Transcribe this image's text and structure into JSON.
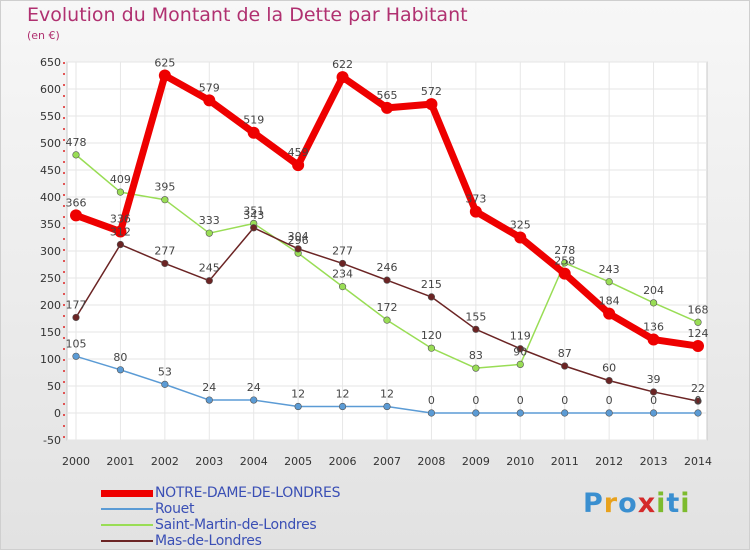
{
  "chart_data": {
    "type": "line",
    "title": "Evolution du Montant de la Dette par Habitant",
    "subtitle": "(en €)",
    "x": [
      2000,
      2001,
      2002,
      2003,
      2004,
      2005,
      2006,
      2007,
      2008,
      2009,
      2010,
      2011,
      2012,
      2013,
      2014
    ],
    "x_tick_labels": [
      "2000",
      "2001",
      "2002",
      "2003",
      "2004",
      "2005",
      "2006",
      "2007",
      "2008",
      "2009",
      "2010",
      "2011",
      "2012",
      "2013",
      "2014"
    ],
    "ylim": [
      -50,
      650
    ],
    "y_ticks": [
      -50,
      0,
      50,
      100,
      150,
      200,
      250,
      300,
      350,
      400,
      450,
      500,
      550,
      600,
      650
    ],
    "y_tick_labels": [
      "-50",
      "0",
      "50",
      "100",
      "150",
      "200",
      "250",
      "300",
      "350",
      "400",
      "450",
      "500",
      "550",
      "600",
      "650"
    ],
    "grid": true,
    "legend_position": "bottom-left",
    "series": [
      {
        "name": "Rouet",
        "color": "#5b9bd5",
        "values": [
          105,
          80,
          53,
          24,
          24,
          12,
          12,
          12,
          0,
          0,
          0,
          0,
          0,
          0,
          0
        ],
        "labels": [
          "105",
          "80",
          "53",
          "24",
          "24",
          "12",
          "12",
          "12",
          "0",
          "0",
          "0",
          "0",
          "0",
          "0",
          "0"
        ]
      },
      {
        "name": "Saint-Martin-de-Londres",
        "color": "#99dd55",
        "values": [
          478,
          409,
          395,
          333,
          351,
          296,
          234,
          172,
          120,
          83,
          90,
          278,
          243,
          204,
          168
        ],
        "labels": [
          "478",
          "409",
          "395",
          "333",
          "351",
          "296",
          "234",
          "172",
          "120",
          "83",
          "90",
          "278",
          "243",
          "204",
          "168"
        ]
      },
      {
        "name": "Mas-de-Londres",
        "color": "#6b2424",
        "values": [
          177,
          312,
          277,
          245,
          343,
          304,
          277,
          246,
          215,
          155,
          119,
          87,
          60,
          39,
          22
        ],
        "labels": [
          "177",
          "312",
          "277",
          "245",
          "343",
          "304",
          "277",
          "246",
          "215",
          "155",
          "119",
          "87",
          "60",
          "39",
          "22"
        ]
      },
      {
        "name": "NOTRE-DAME-DE-LONDRES",
        "color": "#ee0000",
        "values": [
          366,
          336,
          625,
          579,
          519,
          459,
          622,
          565,
          572,
          373,
          325,
          258,
          184,
          136,
          124
        ],
        "labels": [
          "366",
          "336",
          "625",
          "579",
          "519",
          "459",
          "622",
          "565",
          "572",
          "373",
          "325",
          "258",
          "184",
          "136",
          "124"
        ]
      }
    ]
  },
  "legend": [
    {
      "name": "NOTRE-DAME-DE-LONDRES",
      "color": "#ee0000",
      "thickness": 7
    },
    {
      "name": "Rouet",
      "color": "#5b9bd5",
      "thickness": 2
    },
    {
      "name": "Saint-Martin-de-Londres",
      "color": "#99dd55",
      "thickness": 2
    },
    {
      "name": "Mas-de-Londres",
      "color": "#6b2424",
      "thickness": 2
    }
  ],
  "brand": {
    "text": "Proxiti",
    "letters": [
      "P",
      "r",
      "o",
      "x",
      "i",
      "t",
      "i"
    ],
    "colors": [
      "#3a8fd0",
      "#e8a11c",
      "#3a8fd0",
      "#d42a2a",
      "#7dbb2e",
      "#3a8fd0",
      "#7dbb2e"
    ]
  }
}
